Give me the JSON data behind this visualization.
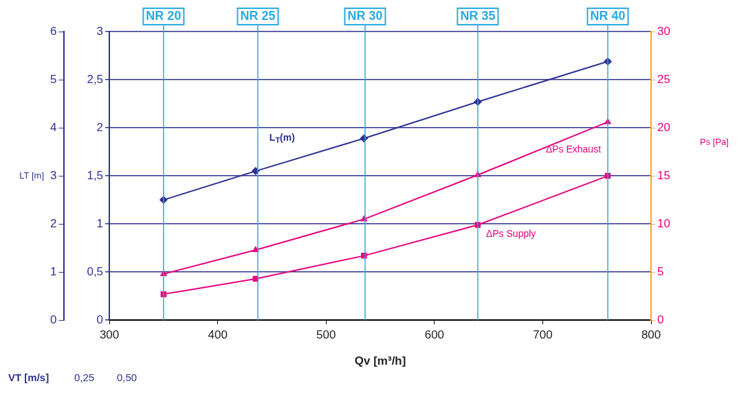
{
  "chart_data": {
    "type": "line",
    "xlabel": "Qv [m³/h]",
    "y3label": "LT [m]",
    "y2label": "Ps [Pa]",
    "x": [
      350,
      435,
      535,
      640,
      760
    ],
    "xlim": [
      300,
      800
    ],
    "xticks": [
      300,
      400,
      500,
      600,
      700,
      800
    ],
    "ylim": [
      0,
      3
    ],
    "yticks": [
      0,
      {
        "value": 0.5,
        "label": "0,5"
      },
      1,
      {
        "value": 1.5,
        "label": "1,5"
      },
      2,
      {
        "value": 2.5,
        "label": "2,5"
      },
      3
    ],
    "y2lim": [
      0,
      30
    ],
    "y2ticks": [
      0,
      5,
      10,
      15,
      20,
      25,
      30
    ],
    "y3lim": [
      0,
      6
    ],
    "y3ticks": [
      0,
      1,
      2,
      3,
      4,
      5,
      6
    ],
    "series": [
      {
        "name": "L$_{T}$(m)",
        "color": "#2e3192",
        "marker": "diamond",
        "values": [
          1.25,
          1.55,
          1.89,
          2.27,
          2.69
        ]
      },
      {
        "name": "ΔPs Exhaust",
        "color": "#e6007e",
        "marker": "triangle",
        "axis": "y2",
        "values": [
          4.8,
          7.3,
          10.5,
          15.1,
          20.6
        ]
      },
      {
        "name": "ΔPs Supply",
        "color": "#e6007e",
        "marker": "square",
        "axis": "y2",
        "values": [
          2.7,
          4.3,
          6.7,
          9.9,
          15
        ]
      }
    ],
    "ref_lines": [
      {
        "axis": "x",
        "value": 350,
        "label": "NR 20",
        "color": "#29abe2"
      },
      {
        "axis": "x",
        "value": 437,
        "label": "NR 25",
        "color": "#29abe2"
      },
      {
        "axis": "x",
        "value": 536,
        "label": "NR 30",
        "color": "#29abe2"
      },
      {
        "axis": "x",
        "value": 640,
        "label": "NR 35",
        "color": "#29abe2"
      },
      {
        "axis": "x",
        "value": 760,
        "label": "NR 40",
        "color": "#29abe2"
      }
    ],
    "annotations": [
      "VT [m/s]",
      "0,25",
      "0,50"
    ],
    "grid": "y",
    "legend": false,
    "line_style": "solid"
  }
}
